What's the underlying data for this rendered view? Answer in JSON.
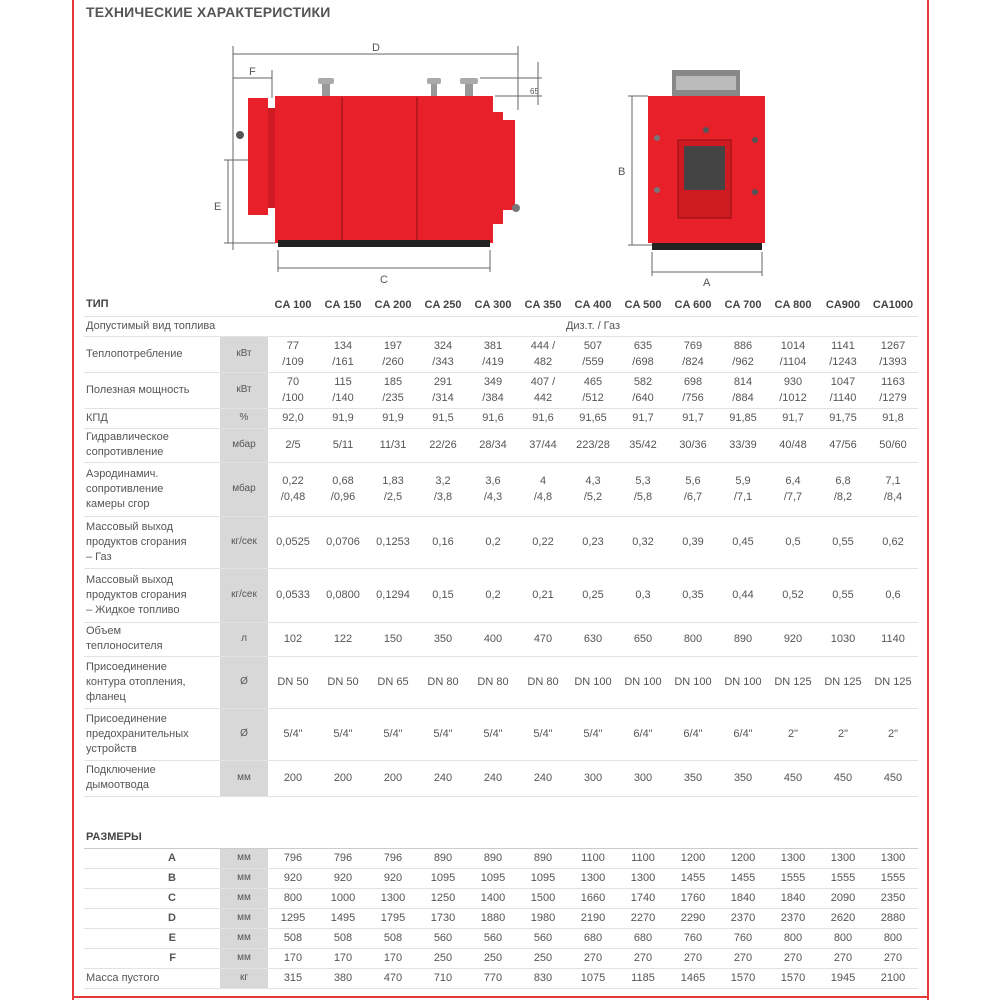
{
  "title": "ТЕХНИЧЕСКИЕ ХАРАКТЕРИСТИКИ",
  "diagram": {
    "labels": {
      "D": "D",
      "F": "F",
      "E": "E",
      "C": "C",
      "B": "B",
      "A": "A",
      "h": "65"
    },
    "colors": {
      "body": "#e8202a",
      "base": "#222222",
      "panel": "#888888"
    }
  },
  "spec": {
    "type_label": "ТИП",
    "models": [
      "CA 100",
      "CA 150",
      "CA 200",
      "CA 250",
      "CA 300",
      "CA 350",
      "CA 400",
      "CA 500",
      "CA 600",
      "CA 700",
      "CA 800",
      "CA900",
      "CA1000"
    ],
    "fuel_label": "Допустимый вид топлива",
    "fuel_value": "Диз.т. / Газ",
    "rows": [
      {
        "label": "Теплопотребление",
        "unit": "кВт",
        "values": [
          "77\n/109",
          "134\n/161",
          "197\n/260",
          "324\n/343",
          "381\n/419",
          "444 /\n482",
          "507\n/559",
          "635\n/698",
          "769\n/824",
          "886\n/962",
          "1014\n/1104",
          "1141\n/1243",
          "1267\n/1393"
        ]
      },
      {
        "label": "Полезная мощность",
        "unit": "кВт",
        "values": [
          "70\n/100",
          "115\n/140",
          "185\n/235",
          "291\n/314",
          "349\n/384",
          "407 /\n442",
          "465\n/512",
          "582\n/640",
          "698\n/756",
          "814\n/884",
          "930\n/1012",
          "1047\n/1140",
          "1163\n/1279"
        ]
      },
      {
        "label": "КПД",
        "unit": "%",
        "values": [
          "92,0",
          "91,9",
          "91,9",
          "91,5",
          "91,6",
          "91,6",
          "91,65",
          "91,7",
          "91,7",
          "91,85",
          "91,7",
          "91,75",
          "91,8"
        ]
      },
      {
        "label": "Гидравлическое\nсопротивление",
        "unit": "мбар",
        "values": [
          "2/5",
          "5/11",
          "11/31",
          "22/26",
          "28/34",
          "37/44",
          "223/28",
          "35/42",
          "30/36",
          "33/39",
          "40/48",
          "47/56",
          "50/60"
        ]
      },
      {
        "label": "Аэродинамич.\nсопротивление\nкамеры сгор",
        "unit": "мбар",
        "values": [
          "0,22\n/0,48",
          "0,68\n/0,96",
          "1,83\n/2,5",
          "3,2\n/3,8",
          "3,6\n/4,3",
          "4\n/4,8",
          "4,3\n/5,2",
          "5,3\n/5,8",
          "5,6\n/6,7",
          "5,9\n/7,1",
          "6,4\n/7,7",
          "6,8\n/8,2",
          "7,1\n/8,4"
        ]
      },
      {
        "label": "Массовый выход\nпродуктов сгорания\n– Газ",
        "unit": "кг/сек",
        "values": [
          "0,0525",
          "0,0706",
          "0,1253",
          "0,16",
          "0,2",
          "0,22",
          "0,23",
          "0,32",
          "0,39",
          "0,45",
          "0,5",
          "0,55",
          "0,62"
        ]
      },
      {
        "label": "Массовый выход\nпродуктов сгорания\n– Жидкое топливо",
        "unit": "кг/сек",
        "values": [
          "0,0533",
          "0,0800",
          "0,1294",
          "0,15",
          "0,2",
          "0,21",
          "0,25",
          "0,3",
          "0,35",
          "0,44",
          "0,52",
          "0,55",
          "0,6"
        ]
      },
      {
        "label": "Объем\nтеплоносителя",
        "unit": "л",
        "values": [
          "102",
          "122",
          "150",
          "350",
          "400",
          "470",
          "630",
          "650",
          "800",
          "890",
          "920",
          "1030",
          "1140"
        ]
      },
      {
        "label": "Присоединение\nконтура отопления,\nфланец",
        "unit": "Ø",
        "values": [
          "DN 50",
          "DN 50",
          "DN 65",
          "DN 80",
          "DN 80",
          "DN 80",
          "DN 100",
          "DN 100",
          "DN 100",
          "DN 100",
          "DN 125",
          "DN 125",
          "DN 125"
        ]
      },
      {
        "label": "Присоединение\nпредохранительных\nустройств",
        "unit": "Ø",
        "values": [
          "5/4\"",
          "5/4\"",
          "5/4\"",
          "5/4\"",
          "5/4\"",
          "5/4\"",
          "5/4\"",
          "6/4\"",
          "6/4\"",
          "6/4\"",
          "2\"",
          "2\"",
          "2\""
        ]
      },
      {
        "label": "Подключение\nдымоотвода",
        "unit": "мм",
        "values": [
          "200",
          "200",
          "200",
          "240",
          "240",
          "240",
          "300",
          "300",
          "350",
          "350",
          "450",
          "450",
          "450"
        ]
      }
    ]
  },
  "dims": {
    "title": "РАЗМЕРЫ",
    "rows": [
      {
        "label": "A",
        "unit": "мм",
        "values": [
          "796",
          "796",
          "796",
          "890",
          "890",
          "890",
          "1100",
          "1100",
          "1200",
          "1200",
          "1300",
          "1300",
          "1300"
        ]
      },
      {
        "label": "B",
        "unit": "мм",
        "values": [
          "920",
          "920",
          "920",
          "1095",
          "1095",
          "1095",
          "1300",
          "1300",
          "1455",
          "1455",
          "1555",
          "1555",
          "1555"
        ]
      },
      {
        "label": "C",
        "unit": "мм",
        "values": [
          "800",
          "1000",
          "1300",
          "1250",
          "1400",
          "1500",
          "1660",
          "1740",
          "1760",
          "1840",
          "1840",
          "2090",
          "2350"
        ]
      },
      {
        "label": "D",
        "unit": "мм",
        "values": [
          "1295",
          "1495",
          "1795",
          "1730",
          "1880",
          "1980",
          "2190",
          "2270",
          "2290",
          "2370",
          "2370",
          "2620",
          "2880"
        ]
      },
      {
        "label": "E",
        "unit": "мм",
        "values": [
          "508",
          "508",
          "508",
          "560",
          "560",
          "560",
          "680",
          "680",
          "760",
          "760",
          "800",
          "800",
          "800"
        ]
      },
      {
        "label": "F",
        "unit": "мм",
        "values": [
          "170",
          "170",
          "170",
          "250",
          "250",
          "250",
          "270",
          "270",
          "270",
          "270",
          "270",
          "270",
          "270"
        ]
      },
      {
        "label": "Масса пустого",
        "unit": "кг",
        "values": [
          "315",
          "380",
          "470",
          "710",
          "770",
          "830",
          "1075",
          "1185",
          "1465",
          "1570",
          "1570",
          "1945",
          "2100"
        ]
      }
    ]
  }
}
